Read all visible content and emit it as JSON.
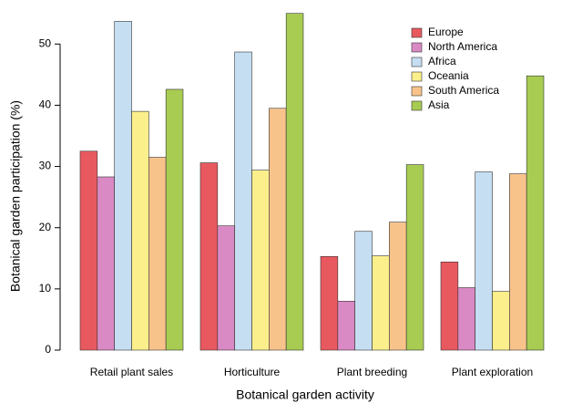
{
  "chart_data": {
    "type": "bar",
    "x_label": "Botanical garden activity",
    "y_label": "Botanical garden participation (%)",
    "categories": [
      "Retail plant sales",
      "Horticulture",
      "Plant breeding",
      "Plant exploration"
    ],
    "series": [
      {
        "name": "Europe",
        "color": "#e8595f",
        "values": [
          32.5,
          30.6,
          15.3,
          14.4
        ]
      },
      {
        "name": "North America",
        "color": "#d98ac4",
        "values": [
          28.3,
          20.3,
          8.0,
          10.2
        ]
      },
      {
        "name": "Africa",
        "color": "#c5def2",
        "values": [
          53.7,
          48.7,
          19.4,
          29.1
        ]
      },
      {
        "name": "Oceania",
        "color": "#fbef8c",
        "values": [
          39.0,
          29.4,
          15.4,
          9.6
        ]
      },
      {
        "name": "South America",
        "color": "#f8c38b",
        "values": [
          31.5,
          39.5,
          20.9,
          28.8
        ]
      },
      {
        "name": "Asia",
        "color": "#a8cc52",
        "values": [
          42.6,
          55.0,
          30.3,
          44.8
        ]
      }
    ],
    "ylim": [
      0,
      56
    ],
    "yticks": [
      0,
      10,
      20,
      30,
      40,
      50
    ],
    "grid": false,
    "legend": "top-right"
  }
}
